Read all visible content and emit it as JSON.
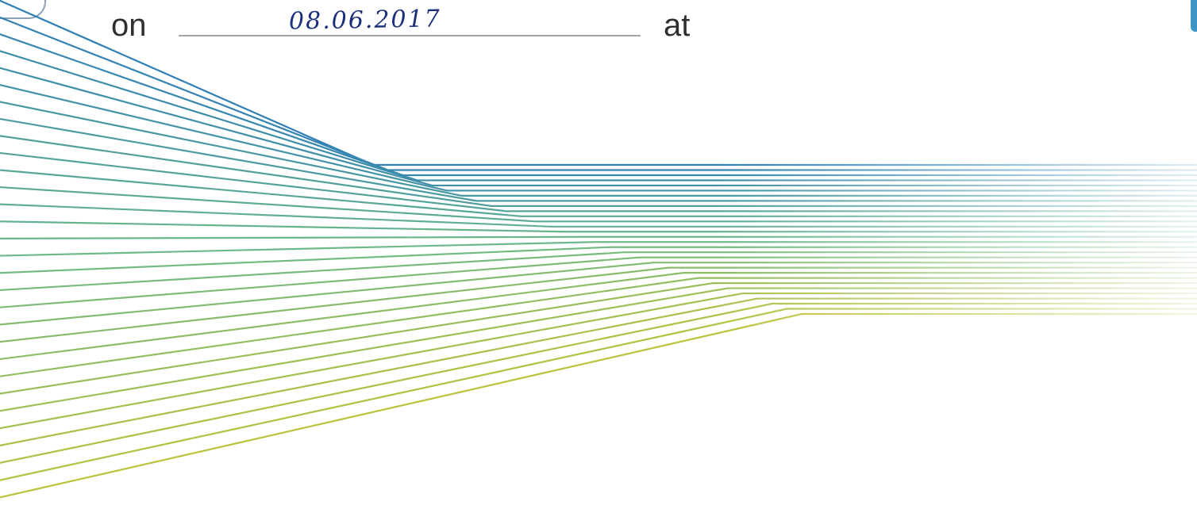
{
  "form_line": {
    "prefix_label": "on",
    "date_value": "08.06.2017",
    "suffix_label": "at"
  },
  "graphic": {
    "name": "striped-ribbon",
    "colors": {
      "top": "#2f7fb4",
      "middle": "#6ab98a",
      "bottom": "#b9c23a",
      "fade": "#ffffff"
    }
  }
}
